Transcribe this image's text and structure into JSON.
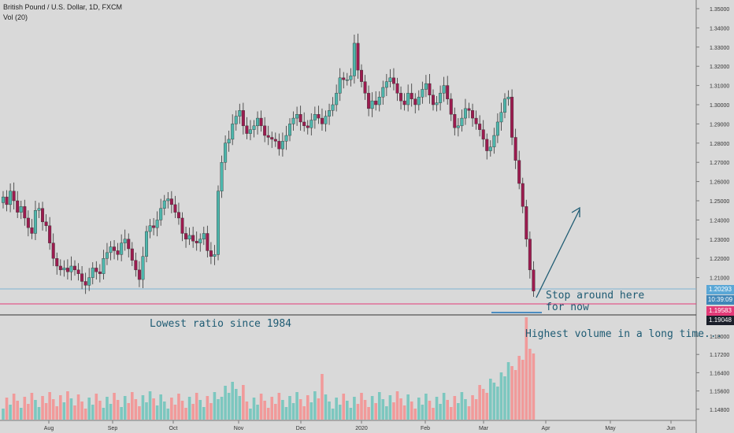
{
  "header": {
    "symbol": "British Pound / U.S. Dollar, 1D, FXCM",
    "volume_label": "Vol (20)"
  },
  "annotations": {
    "stop": "Stop around here\nfor now",
    "lowest": "Lowest ratio since 1984",
    "volume": "Highest volume in a long time..."
  },
  "price_tags": {
    "last": {
      "value": "1.20293",
      "color": "#5aa7d6"
    },
    "timer": {
      "value": "10:39:09",
      "color": "#3f86b8"
    },
    "low_line": {
      "value": "1.19583",
      "color": "#e23a77"
    },
    "support": {
      "value": "1.19048",
      "color": "#1b1f2a"
    }
  },
  "colors": {
    "up": "#4db6ac",
    "down": "#9c1b4f",
    "vol_up": "#7cc7bf",
    "vol_down": "#f19a9a",
    "axis": "#555555"
  },
  "chart_data": {
    "type": "candlestick",
    "y_axis_ticks": [
      "1.35000",
      "1.34000",
      "1.33000",
      "1.32000",
      "1.31000",
      "1.30000",
      "1.29000",
      "1.28000",
      "1.27000",
      "1.26000",
      "1.25000",
      "1.24000",
      "1.23000",
      "1.22000",
      "1.21000",
      "1.18000",
      "1.17200",
      "1.16400",
      "1.15600",
      "1.14800"
    ],
    "x_axis_ticks": [
      "Aug",
      "Sep",
      "Oct",
      "Nov",
      "Dec",
      "2020",
      "Feb",
      "Mar",
      "Apr",
      "May",
      "Jun"
    ],
    "close_series": [
      1.252,
      1.248,
      1.255,
      1.25,
      1.244,
      1.247,
      1.241,
      1.236,
      1.233,
      1.245,
      1.246,
      1.239,
      1.237,
      1.228,
      1.22,
      1.216,
      1.214,
      1.215,
      1.213,
      1.216,
      1.214,
      1.212,
      1.208,
      1.206,
      1.21,
      1.215,
      1.213,
      1.212,
      1.22,
      1.223,
      1.226,
      1.224,
      1.222,
      1.228,
      1.23,
      1.225,
      1.219,
      1.214,
      1.209,
      1.221,
      1.234,
      1.237,
      1.236,
      1.24,
      1.246,
      1.25,
      1.251,
      1.248,
      1.244,
      1.241,
      1.233,
      1.23,
      1.232,
      1.229,
      1.228,
      1.23,
      1.233,
      1.224,
      1.221,
      1.222,
      1.255,
      1.27,
      1.28,
      1.282,
      1.29,
      1.294,
      1.297,
      1.289,
      1.285,
      1.287,
      1.289,
      1.293,
      1.289,
      1.284,
      1.283,
      1.282,
      1.281,
      1.277,
      1.281,
      1.284,
      1.29,
      1.293,
      1.295,
      1.291,
      1.289,
      1.288,
      1.292,
      1.295,
      1.293,
      1.29,
      1.294,
      1.297,
      1.3,
      1.306,
      1.314,
      1.313,
      1.313,
      1.315,
      1.332,
      1.318,
      1.312,
      1.306,
      1.298,
      1.302,
      1.3,
      1.304,
      1.309,
      1.312,
      1.314,
      1.311,
      1.306,
      1.302,
      1.3,
      1.306,
      1.303,
      1.3,
      1.304,
      1.308,
      1.311,
      1.305,
      1.3,
      1.301,
      1.306,
      1.31,
      1.303,
      1.295,
      1.288,
      1.289,
      1.293,
      1.298,
      1.297,
      1.293,
      1.29,
      1.287,
      1.282,
      1.276,
      1.278,
      1.284,
      1.291,
      1.296,
      1.303,
      1.304,
      1.283,
      1.271,
      1.259,
      1.247,
      1.23,
      1.214,
      1.203
    ],
    "volume_series": "relative bar heights, spike at last bars"
  }
}
